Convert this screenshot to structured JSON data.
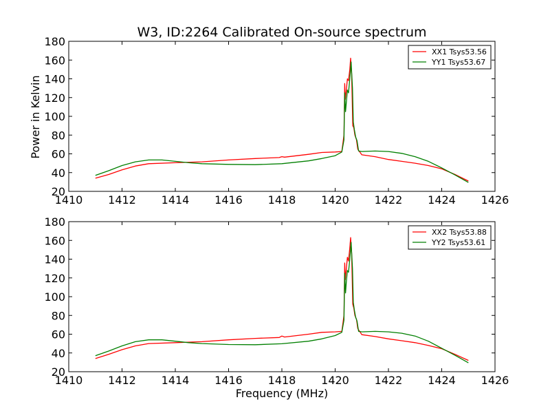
{
  "title": "W3, ID:2264 Calibrated On-source spectrum",
  "ylabel": "Power in Kelvin",
  "xlabel": "Frequency (MHz)",
  "colors": {
    "xx": "#ff0000",
    "yy": "#007f00"
  },
  "chart_data": [
    {
      "type": "line",
      "xlim": [
        1410,
        1426
      ],
      "ylim": [
        20,
        180
      ],
      "xticks": [
        1410,
        1412,
        1414,
        1416,
        1418,
        1420,
        1422,
        1424,
        1426
      ],
      "yticks": [
        20,
        40,
        60,
        80,
        100,
        120,
        140,
        160,
        180
      ],
      "legend_position": "top-right",
      "series": [
        {
          "name": "XX1 Tsys53.56",
          "color": "#ff0000",
          "points": [
            [
              1411,
              34
            ],
            [
              1411.5,
              38
            ],
            [
              1412,
              43
            ],
            [
              1412.5,
              47
            ],
            [
              1413,
              49.5
            ],
            [
              1414,
              50.5
            ],
            [
              1415,
              51.5
            ],
            [
              1416,
              53.5
            ],
            [
              1417,
              55
            ],
            [
              1417.9,
              56
            ],
            [
              1418,
              57
            ],
            [
              1418.1,
              56.5
            ],
            [
              1419,
              59.5
            ],
            [
              1419.5,
              61.5
            ],
            [
              1420,
              62
            ],
            [
              1420.25,
              62.5
            ],
            [
              1420.33,
              80
            ],
            [
              1420.36,
              135
            ],
            [
              1420.38,
              118
            ],
            [
              1420.42,
              128
            ],
            [
              1420.46,
              140
            ],
            [
              1420.5,
              138
            ],
            [
              1420.55,
              150
            ],
            [
              1420.58,
              162
            ],
            [
              1420.62,
              145
            ],
            [
              1420.66,
              90
            ],
            [
              1420.7,
              88
            ],
            [
              1420.74,
              80
            ],
            [
              1420.8,
              75
            ],
            [
              1420.85,
              65
            ],
            [
              1421,
              59
            ],
            [
              1421.5,
              57
            ],
            [
              1422,
              54
            ],
            [
              1422.5,
              52
            ],
            [
              1423,
              50
            ],
            [
              1423.5,
              47.5
            ],
            [
              1424,
              44
            ],
            [
              1424.5,
              38
            ],
            [
              1425,
              31
            ]
          ]
        },
        {
          "name": "YY1 Tsys53.67",
          "color": "#007f00",
          "points": [
            [
              1411,
              37
            ],
            [
              1411.5,
              42
            ],
            [
              1412,
              47.5
            ],
            [
              1412.5,
              51.5
            ],
            [
              1413,
              53.5
            ],
            [
              1413.5,
              53.5
            ],
            [
              1414,
              52
            ],
            [
              1414.5,
              50.5
            ],
            [
              1415,
              49.5
            ],
            [
              1416,
              48.8
            ],
            [
              1417,
              48.5
            ],
            [
              1418,
              49.5
            ],
            [
              1419,
              52.5
            ],
            [
              1419.5,
              55
            ],
            [
              1420,
              58
            ],
            [
              1420.25,
              62
            ],
            [
              1420.33,
              75
            ],
            [
              1420.36,
              125
            ],
            [
              1420.39,
              105
            ],
            [
              1420.42,
              115
            ],
            [
              1420.46,
              128
            ],
            [
              1420.5,
              125
            ],
            [
              1420.55,
              140
            ],
            [
              1420.6,
              158
            ],
            [
              1420.65,
              130
            ],
            [
              1420.68,
              94
            ],
            [
              1420.72,
              86
            ],
            [
              1420.77,
              78
            ],
            [
              1420.82,
              74
            ],
            [
              1420.88,
              63
            ],
            [
              1421,
              62.5
            ],
            [
              1421.5,
              63
            ],
            [
              1422,
              62.5
            ],
            [
              1422.5,
              60.5
            ],
            [
              1423,
              57
            ],
            [
              1423.5,
              52
            ],
            [
              1424,
              45
            ],
            [
              1424.5,
              37.5
            ],
            [
              1425,
              29.5
            ]
          ]
        }
      ]
    },
    {
      "type": "line",
      "xlim": [
        1410,
        1426
      ],
      "ylim": [
        20,
        180
      ],
      "xticks": [
        1410,
        1412,
        1414,
        1416,
        1418,
        1420,
        1422,
        1424,
        1426
      ],
      "yticks": [
        20,
        40,
        60,
        80,
        100,
        120,
        140,
        160,
        180
      ],
      "legend_position": "top-right",
      "series": [
        {
          "name": "XX2 Tsys53.88",
          "color": "#ff0000",
          "points": [
            [
              1411,
              34
            ],
            [
              1411.5,
              38.5
            ],
            [
              1412,
              43.5
            ],
            [
              1412.5,
              47.5
            ],
            [
              1413,
              50
            ],
            [
              1414,
              51
            ],
            [
              1415,
              52
            ],
            [
              1416,
              54
            ],
            [
              1417,
              55.5
            ],
            [
              1417.9,
              56.5
            ],
            [
              1418,
              58
            ],
            [
              1418.1,
              57
            ],
            [
              1419,
              60
            ],
            [
              1419.5,
              62
            ],
            [
              1420,
              62.5
            ],
            [
              1420.25,
              63
            ],
            [
              1420.33,
              80
            ],
            [
              1420.36,
              136
            ],
            [
              1420.38,
              118
            ],
            [
              1420.42,
              130
            ],
            [
              1420.46,
              142
            ],
            [
              1420.5,
              138
            ],
            [
              1420.55,
              152
            ],
            [
              1420.58,
              163
            ],
            [
              1420.62,
              146
            ],
            [
              1420.66,
              92
            ],
            [
              1420.7,
              88
            ],
            [
              1420.74,
              80
            ],
            [
              1420.8,
              76
            ],
            [
              1420.85,
              66
            ],
            [
              1421,
              59.5
            ],
            [
              1421.5,
              57.5
            ],
            [
              1422,
              55
            ],
            [
              1422.5,
              53
            ],
            [
              1423,
              51
            ],
            [
              1423.5,
              48
            ],
            [
              1424,
              44.5
            ],
            [
              1424.5,
              38.5
            ],
            [
              1425,
              32
            ]
          ]
        },
        {
          "name": "YY2 Tsys53.61",
          "color": "#007f00",
          "points": [
            [
              1411,
              37
            ],
            [
              1411.5,
              42
            ],
            [
              1412,
              47.5
            ],
            [
              1412.5,
              52
            ],
            [
              1413,
              54
            ],
            [
              1413.5,
              54
            ],
            [
              1414,
              52.5
            ],
            [
              1414.5,
              51
            ],
            [
              1415,
              50
            ],
            [
              1416,
              49
            ],
            [
              1417,
              48.8
            ],
            [
              1418,
              49.8
            ],
            [
              1419,
              52.5
            ],
            [
              1419.5,
              55
            ],
            [
              1420,
              58.5
            ],
            [
              1420.25,
              62
            ],
            [
              1420.33,
              75
            ],
            [
              1420.36,
              125
            ],
            [
              1420.39,
              104
            ],
            [
              1420.42,
              116
            ],
            [
              1420.46,
              128
            ],
            [
              1420.5,
              126
            ],
            [
              1420.55,
              140
            ],
            [
              1420.6,
              158
            ],
            [
              1420.65,
              130
            ],
            [
              1420.68,
              94
            ],
            [
              1420.72,
              86
            ],
            [
              1420.77,
              78
            ],
            [
              1420.82,
              74
            ],
            [
              1420.88,
              63
            ],
            [
              1421,
              62.5
            ],
            [
              1421.5,
              63
            ],
            [
              1422,
              62.5
            ],
            [
              1422.5,
              61
            ],
            [
              1423,
              58
            ],
            [
              1423.5,
              52.5
            ],
            [
              1424,
              45
            ],
            [
              1424.5,
              37.5
            ],
            [
              1425,
              29.5
            ]
          ]
        }
      ]
    }
  ]
}
